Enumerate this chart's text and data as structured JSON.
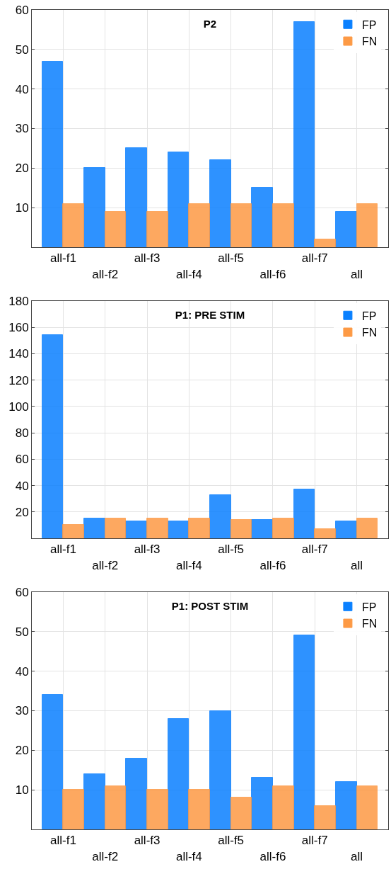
{
  "chart_data": [
    {
      "type": "bar",
      "title": "P2",
      "categories": [
        "all-f1",
        "all-f2",
        "all-f3",
        "all-f4",
        "all-f5",
        "all-f6",
        "all-f7",
        "all"
      ],
      "series": [
        {
          "name": "FP",
          "color": "#0a80ff",
          "values": [
            47,
            20,
            25,
            24,
            22,
            15,
            57,
            9
          ]
        },
        {
          "name": "FN",
          "color": "#fd9a45",
          "values": [
            11,
            9,
            9,
            11,
            11,
            11,
            2,
            11
          ]
        }
      ],
      "ylim": [
        0,
        60
      ],
      "yticks": [
        10,
        20,
        30,
        40,
        50,
        60
      ],
      "grid": true,
      "legend": "top right"
    },
    {
      "type": "bar",
      "title": "P1: PRE STIM",
      "categories": [
        "all-f1",
        "all-f2",
        "all-f3",
        "all-f4",
        "all-f5",
        "all-f6",
        "all-f7",
        "all"
      ],
      "series": [
        {
          "name": "FP",
          "color": "#0a80ff",
          "values": [
            154,
            15,
            13,
            13,
            33,
            14,
            37,
            13
          ]
        },
        {
          "name": "FN",
          "color": "#fd9a45",
          "values": [
            10,
            15,
            15,
            15,
            14,
            15,
            7,
            15
          ]
        }
      ],
      "ylim": [
        0,
        180
      ],
      "yticks": [
        20,
        40,
        60,
        80,
        100,
        120,
        140,
        160,
        180
      ],
      "grid": true,
      "legend": "top right"
    },
    {
      "type": "bar",
      "title": "P1: POST STIM",
      "categories": [
        "all-f1",
        "all-f2",
        "all-f3",
        "all-f4",
        "all-f5",
        "all-f6",
        "all-f7",
        "all"
      ],
      "series": [
        {
          "name": "FP",
          "color": "#0a80ff",
          "values": [
            34,
            14,
            18,
            28,
            30,
            13,
            49,
            12
          ]
        },
        {
          "name": "FN",
          "color": "#fd9a45",
          "values": [
            10,
            11,
            10,
            10,
            8,
            11,
            6,
            11
          ]
        }
      ],
      "ylim": [
        0,
        60
      ],
      "yticks": [
        10,
        20,
        30,
        40,
        50,
        60
      ],
      "grid": true,
      "legend": "top right"
    }
  ]
}
